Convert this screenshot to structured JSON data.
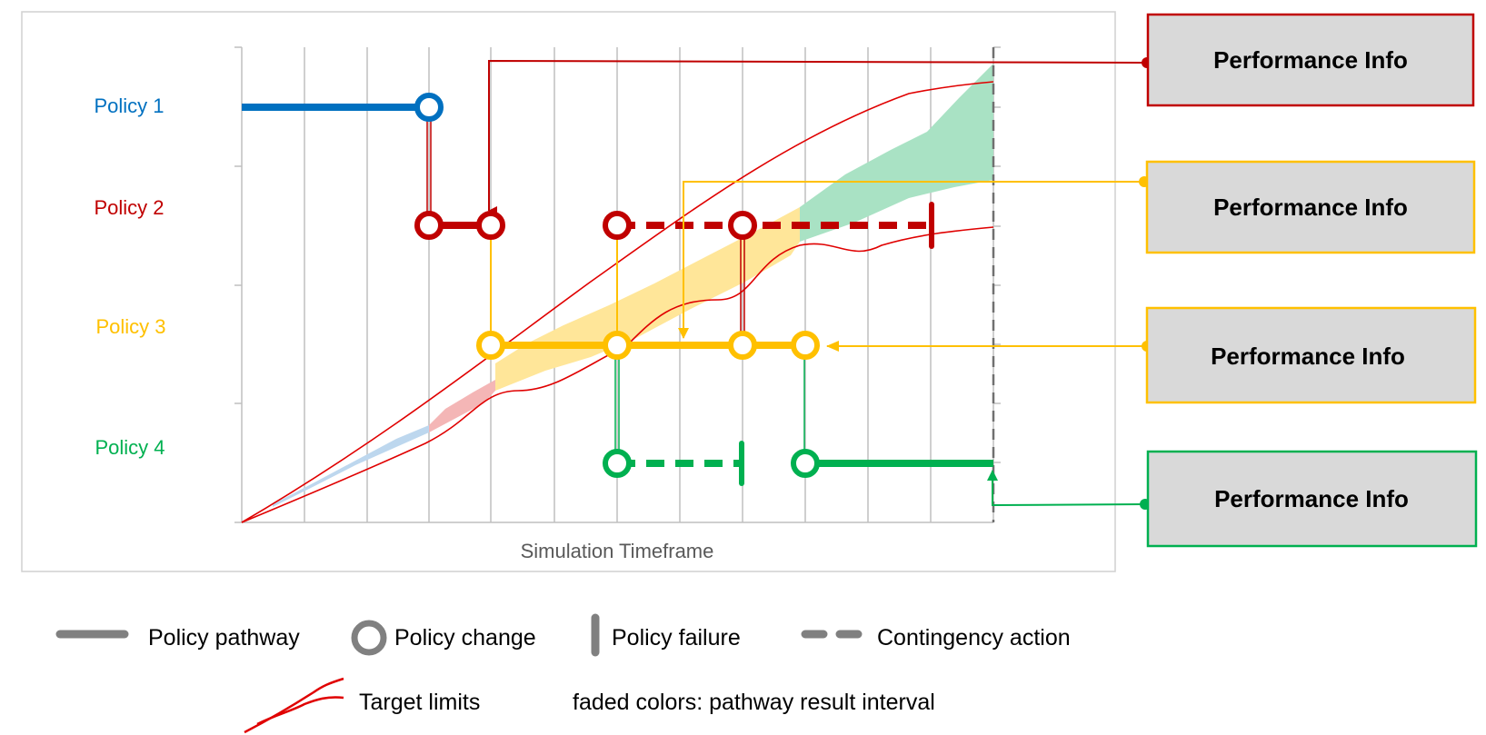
{
  "diagram": {
    "x_axis_label": "Simulation Timeframe",
    "policies": [
      {
        "id": "p1",
        "label": "Policy 1",
        "color": "#0070C0"
      },
      {
        "id": "p2",
        "label": "Policy 2",
        "color": "#C00000"
      },
      {
        "id": "p3",
        "label": "Policy 3",
        "color": "#FFC000"
      },
      {
        "id": "p4",
        "label": "Policy 4",
        "color": "#00B050"
      }
    ],
    "performance_boxes": [
      {
        "label": "Performance Info",
        "color": "#C00000"
      },
      {
        "label": "Performance Info",
        "color": "#FFC000"
      },
      {
        "label": "Performance Info",
        "color": "#FFC000"
      },
      {
        "label": "Performance Info",
        "color": "#00B050"
      }
    ],
    "legend": {
      "policy_pathway": "Policy pathway",
      "policy_change": "Policy change",
      "policy_failure": "Policy failure",
      "contingency_action": "Contingency action",
      "target_limits": "Target limits",
      "faded_note": "faded colors: pathway result interval"
    },
    "colors": {
      "legend_gray": "#808080",
      "grid_gray": "#BFBFBF",
      "box_fill": "#D9D9D9",
      "target_red": "#E00000",
      "band_blue": "#BDD7EE",
      "band_red": "#F4B6B6",
      "band_yellow": "#FFE699",
      "band_green": "#A9E2C4"
    }
  }
}
